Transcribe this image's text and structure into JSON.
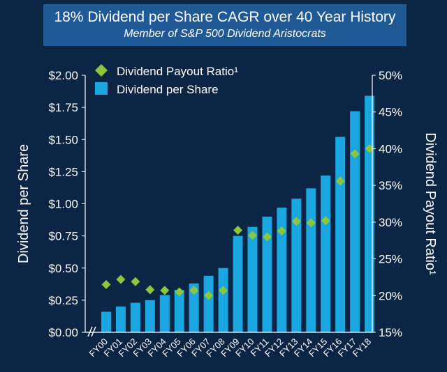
{
  "title": "18% Dividend per Share CAGR over 40 Year History",
  "subtitle": "Member of S&P 500 Dividend Aristocrats",
  "colors": {
    "background": "#0b2545",
    "title_box": "#1f5a96",
    "bar": "#1aa6e0",
    "diamond": "#8cc63f"
  },
  "chart_data": {
    "type": "bar",
    "categories": [
      "FY00",
      "FY01",
      "FY02",
      "FY03",
      "FY04",
      "FY05",
      "FY06",
      "FY07",
      "FY08",
      "FY09",
      "FY10",
      "FY11",
      "FY12",
      "FY13",
      "FY14",
      "FY15",
      "FY16",
      "FY17",
      "FY18"
    ],
    "ylabel": "Dividend per Share",
    "y2label": "Dividend Payout Ratio¹",
    "ylim": [
      0,
      2.0
    ],
    "y2lim": [
      15,
      50
    ],
    "yticks": [
      "$0.00",
      "$0.25",
      "$0.50",
      "$0.75",
      "$1.00",
      "$1.25",
      "$1.50",
      "$1.75",
      "$2.00"
    ],
    "y2ticks": [
      "15%",
      "20%",
      "25%",
      "30%",
      "35%",
      "40%",
      "45%",
      "50%"
    ],
    "axis_break": "//",
    "legend_placement": "top-left",
    "series": [
      {
        "name": "Dividend Payout Ratio¹",
        "kind": "diamond",
        "axis": "right",
        "values": [
          21.5,
          22.2,
          21.9,
          20.8,
          20.7,
          20.5,
          20.7,
          20.0,
          20.7,
          28.9,
          28.2,
          28.0,
          28.8,
          30.1,
          29.9,
          30.2,
          35.6,
          39.3,
          40.0
        ]
      },
      {
        "name": "Dividend per Share",
        "kind": "bar",
        "axis": "left",
        "values": [
          0.16,
          0.2,
          0.23,
          0.25,
          0.29,
          0.33,
          0.38,
          0.44,
          0.5,
          0.75,
          0.82,
          0.9,
          0.97,
          1.04,
          1.12,
          1.22,
          1.52,
          1.72,
          1.84
        ]
      }
    ]
  }
}
